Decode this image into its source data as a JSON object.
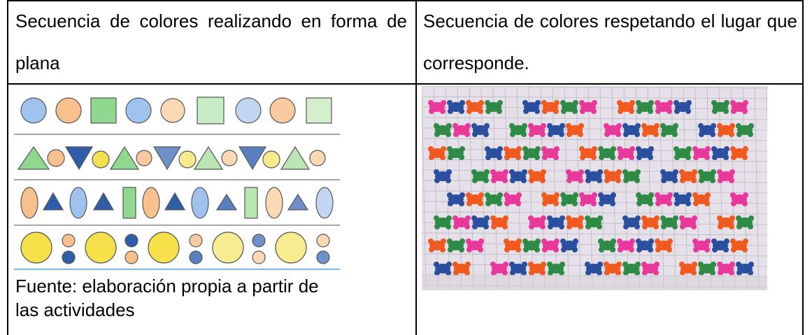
{
  "table": {
    "header": [
      "Secuencia de colores realizando en forma de plana",
      "Secuencia de colores respetando el lugar que corresponde."
    ],
    "caption": "Fuente: elaboración propia a partir de las actividades"
  }
}
